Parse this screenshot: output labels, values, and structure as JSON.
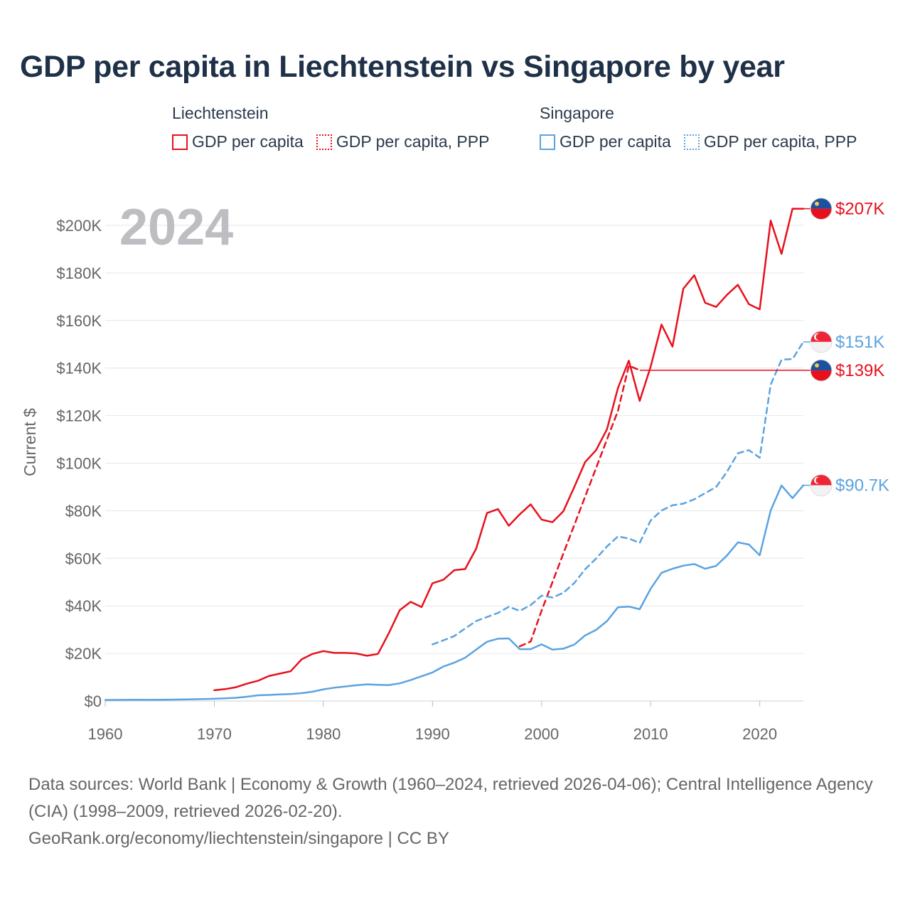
{
  "title": "GDP per capita in Liechtenstein vs Singapore by year",
  "legend": {
    "groups": [
      {
        "heading": "Liechtenstein",
        "color": "#e8101d",
        "items": [
          {
            "label": "GDP per capita",
            "style": "solid"
          },
          {
            "label": "GDP per capita, PPP",
            "style": "dotted"
          }
        ]
      },
      {
        "heading": "Singapore",
        "color": "#5ba3e0",
        "items": [
          {
            "label": "GDP per capita",
            "style": "solid"
          },
          {
            "label": "GDP per capita, PPP",
            "style": "dotted"
          }
        ]
      }
    ]
  },
  "year_overlay": "2024",
  "footer": {
    "line1": "Data sources: World Bank | Economy & Growth (1960–2024, retrieved 2026-04-06); Central Intelligence Agency (CIA) (1998–2009, retrieved 2026-02-20).",
    "line2": "GeoRank.org/economy/liechtenstein/singapore | CC BY"
  },
  "chart_data": {
    "type": "line",
    "title": "GDP per capita in Liechtenstein vs Singapore by year",
    "xlabel": "",
    "ylabel": "Current $",
    "xlim": [
      1960,
      2024
    ],
    "ylim": [
      0,
      210000
    ],
    "x_ticks": [
      1960,
      1970,
      1980,
      1990,
      2000,
      2010,
      2020
    ],
    "y_ticks": [
      0,
      20000,
      40000,
      60000,
      80000,
      100000,
      120000,
      140000,
      160000,
      180000,
      200000
    ],
    "y_tick_labels": [
      "$0",
      "$20K",
      "$40K",
      "$60K",
      "$80K",
      "$100K",
      "$120K",
      "$140K",
      "$160K",
      "$180K",
      "$200K"
    ],
    "grid": true,
    "series": [
      {
        "name": "Liechtenstein GDP per capita",
        "country": "Liechtenstein",
        "color": "#e8101d",
        "dash": false,
        "end_label": "$207K",
        "x": [
          1970,
          1971,
          1972,
          1973,
          1974,
          1975,
          1976,
          1977,
          1978,
          1979,
          1980,
          1981,
          1982,
          1983,
          1984,
          1985,
          1986,
          1987,
          1988,
          1989,
          1990,
          1991,
          1992,
          1993,
          1994,
          1995,
          1996,
          1997,
          1998,
          1999,
          2000,
          2001,
          2002,
          2003,
          2004,
          2005,
          2006,
          2007,
          2008,
          2009,
          2010,
          2011,
          2012,
          2013,
          2014,
          2015,
          2016,
          2017,
          2018,
          2019,
          2020,
          2021,
          2022,
          2023,
          2024
        ],
        "y": [
          4500,
          5000,
          5800,
          7300,
          8500,
          10500,
          11500,
          12500,
          17500,
          19800,
          21000,
          20200,
          20200,
          20000,
          19000,
          19800,
          28500,
          38200,
          41700,
          39500,
          49500,
          51000,
          55000,
          55500,
          64000,
          79000,
          80700,
          73700,
          78500,
          82700,
          76300,
          75200,
          79800,
          90000,
          100500,
          105500,
          114300,
          131600,
          143100,
          126200,
          140600,
          158300,
          149000,
          173400,
          179000,
          167400,
          165700,
          170800,
          175000,
          166900,
          164700,
          202000,
          188000,
          207000,
          207000
        ]
      },
      {
        "name": "Liechtenstein GDP per capita, PPP",
        "country": "Liechtenstein",
        "color": "#e8101d",
        "dash": true,
        "end_label": "$139K",
        "x": [
          1998,
          1999,
          2000,
          2001,
          2002,
          2003,
          2004,
          2005,
          2006,
          2007,
          2008,
          2009
        ],
        "y": [
          23000,
          25000,
          38000,
          50000,
          62000,
          74000,
          86000,
          98000,
          110000,
          122000,
          141000,
          139100
        ]
      },
      {
        "name": "Singapore GDP per capita",
        "country": "Singapore",
        "color": "#5ba3e0",
        "dash": false,
        "end_label": "$90.7K",
        "x": [
          1960,
          1961,
          1962,
          1963,
          1964,
          1965,
          1966,
          1967,
          1968,
          1969,
          1970,
          1971,
          1972,
          1973,
          1974,
          1975,
          1976,
          1977,
          1978,
          1979,
          1980,
          1981,
          1982,
          1983,
          1984,
          1985,
          1986,
          1987,
          1988,
          1989,
          1990,
          1991,
          1992,
          1993,
          1994,
          1995,
          1996,
          1997,
          1998,
          1999,
          2000,
          2001,
          2002,
          2003,
          2004,
          2005,
          2006,
          2007,
          2008,
          2009,
          2010,
          2011,
          2012,
          2013,
          2014,
          2015,
          2016,
          2017,
          2018,
          2019,
          2020,
          2021,
          2022,
          2023,
          2024
        ],
        "y": [
          430,
          450,
          480,
          500,
          490,
          520,
          570,
          620,
          710,
          810,
          930,
          1100,
          1350,
          1800,
          2400,
          2550,
          2750,
          2900,
          3300,
          3900,
          4900,
          5600,
          6100,
          6600,
          7000,
          6800,
          6700,
          7400,
          8800,
          10400,
          12000,
          14500,
          16100,
          18200,
          21600,
          24900,
          26200,
          26300,
          21800,
          21800,
          23800,
          21600,
          22000,
          23700,
          27600,
          29900,
          33600,
          39400,
          39700,
          38600,
          47200,
          53900,
          55600,
          56900,
          57600,
          55600,
          56800,
          61200,
          66700,
          65800,
          61300,
          80100,
          90600,
          85300,
          90700
        ]
      },
      {
        "name": "Singapore GDP per capita, PPP",
        "country": "Singapore",
        "color": "#5ba3e0",
        "dash": true,
        "end_label": "$151K",
        "x": [
          1990,
          1991,
          1992,
          1993,
          1994,
          1995,
          1996,
          1997,
          1998,
          1999,
          2000,
          2001,
          2002,
          2003,
          2004,
          2005,
          2006,
          2007,
          2008,
          2009,
          2010,
          2011,
          2012,
          2013,
          2014,
          2015,
          2016,
          2017,
          2018,
          2019,
          2020,
          2021,
          2022,
          2023,
          2024
        ],
        "y": [
          23800,
          25500,
          27300,
          30500,
          33600,
          35300,
          37000,
          39600,
          37900,
          40300,
          44300,
          43500,
          45500,
          49600,
          55400,
          59900,
          65000,
          69200,
          68300,
          66500,
          75900,
          80100,
          82300,
          83000,
          84800,
          87400,
          90000,
          96400,
          104200,
          105500,
          102300,
          133000,
          143500,
          143800,
          151000
        ]
      }
    ]
  },
  "end_labels": [
    {
      "text": "$207K",
      "country": "Liechtenstein",
      "color": "#e8101d",
      "value": 207000
    },
    {
      "text": "$151K",
      "country": "Singapore",
      "color": "#5ba3e0",
      "value": 151000
    },
    {
      "text": "$139K",
      "country": "Liechtenstein",
      "color": "#e8101d",
      "value": 139000
    },
    {
      "text": "$90.7K",
      "country": "Singapore",
      "color": "#5ba3e0",
      "value": 90700
    }
  ]
}
